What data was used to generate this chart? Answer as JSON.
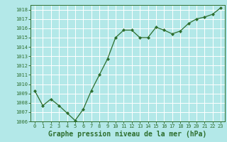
{
  "x": [
    0,
    1,
    2,
    3,
    4,
    5,
    6,
    7,
    8,
    9,
    10,
    11,
    12,
    13,
    14,
    15,
    16,
    17,
    18,
    19,
    20,
    21,
    22,
    23
  ],
  "y": [
    1009.3,
    1007.7,
    1008.4,
    1007.7,
    1006.9,
    1006.1,
    1007.3,
    1009.3,
    1011.0,
    1012.7,
    1015.0,
    1015.8,
    1015.8,
    1015.0,
    1015.0,
    1016.1,
    1015.8,
    1015.4,
    1015.7,
    1016.5,
    1017.0,
    1017.2,
    1017.5,
    1018.2
  ],
  "line_color": "#2d6e2d",
  "marker": "D",
  "marker_size": 2.0,
  "linewidth": 0.9,
  "bg_color": "#b3e8e8",
  "plot_bg_color": "#b3e8e8",
  "grid_color": "#ffffff",
  "xlabel": "Graphe pression niveau de la mer (hPa)",
  "xlabel_color": "#2d6e2d",
  "xlabel_fontsize": 7.0,
  "tick_label_color": "#2d6e2d",
  "tick_fontsize": 5.0,
  "ylim": [
    1006,
    1018.5
  ],
  "xlim": [
    -0.5,
    23.5
  ],
  "yticks": [
    1006,
    1007,
    1008,
    1009,
    1010,
    1011,
    1012,
    1013,
    1014,
    1015,
    1016,
    1017,
    1018
  ],
  "xticks": [
    0,
    1,
    2,
    3,
    4,
    5,
    6,
    7,
    8,
    9,
    10,
    11,
    12,
    13,
    14,
    15,
    16,
    17,
    18,
    19,
    20,
    21,
    22,
    23
  ]
}
